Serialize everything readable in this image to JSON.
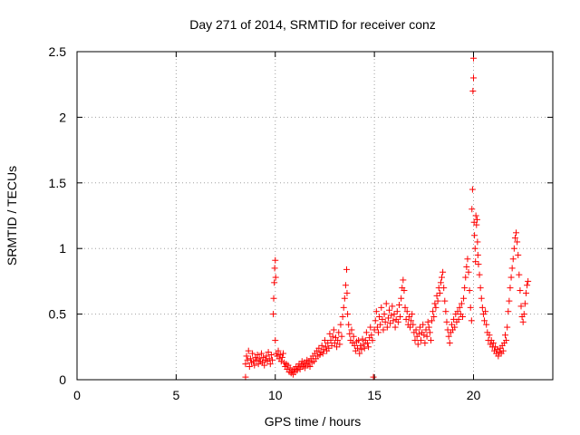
{
  "chart_data": {
    "type": "scatter",
    "title": "Day 271 of 2014, SRMTID for receiver conz",
    "xlabel": "GPS time / hours",
    "ylabel": "SRMTID / TECUs",
    "xlim": [
      0,
      24
    ],
    "ylim": [
      0,
      2.5
    ],
    "xticks": [
      0,
      5,
      10,
      15,
      20
    ],
    "yticks": [
      0,
      0.5,
      1,
      1.5,
      2,
      2.5
    ],
    "xtick_labels": [
      "0",
      "5",
      "10",
      "15",
      "20"
    ],
    "ytick_labels": [
      "0",
      "0.5",
      "1",
      "1.5",
      "2",
      "2.5"
    ],
    "grid": true,
    "marker": "+",
    "color": "#ff0000",
    "series": [
      {
        "name": "SRMTID",
        "points": [
          [
            8.5,
            0.02
          ],
          [
            8.5,
            0.12
          ],
          [
            8.55,
            0.18
          ],
          [
            8.6,
            0.15
          ],
          [
            8.65,
            0.22
          ],
          [
            8.7,
            0.1
          ],
          [
            8.75,
            0.16
          ],
          [
            8.8,
            0.13
          ],
          [
            8.85,
            0.2
          ],
          [
            8.9,
            0.14
          ],
          [
            8.95,
            0.11
          ],
          [
            9.0,
            0.17
          ],
          [
            9.05,
            0.15
          ],
          [
            9.1,
            0.19
          ],
          [
            9.15,
            0.12
          ],
          [
            9.2,
            0.16
          ],
          [
            9.25,
            0.14
          ],
          [
            9.3,
            0.2
          ],
          [
            9.35,
            0.13
          ],
          [
            9.4,
            0.17
          ],
          [
            9.45,
            0.11
          ],
          [
            9.5,
            0.15
          ],
          [
            9.55,
            0.18
          ],
          [
            9.6,
            0.14
          ],
          [
            9.65,
            0.21
          ],
          [
            9.7,
            0.16
          ],
          [
            9.75,
            0.12
          ],
          [
            9.8,
            0.19
          ],
          [
            9.85,
            0.15
          ],
          [
            9.9,
            0.5
          ],
          [
            9.92,
            0.62
          ],
          [
            9.95,
            0.74
          ],
          [
            9.97,
            0.85
          ],
          [
            10.0,
            0.91
          ],
          [
            10.0,
            0.3
          ],
          [
            10.02,
            0.78
          ],
          [
            10.05,
            0.2
          ],
          [
            10.1,
            0.18
          ],
          [
            10.15,
            0.22
          ],
          [
            10.2,
            0.16
          ],
          [
            10.25,
            0.19
          ],
          [
            10.3,
            0.14
          ],
          [
            10.35,
            0.17
          ],
          [
            10.4,
            0.2
          ],
          [
            10.45,
            0.13
          ],
          [
            10.5,
            0.1
          ],
          [
            10.55,
            0.12
          ],
          [
            10.6,
            0.08
          ],
          [
            10.65,
            0.11
          ],
          [
            10.7,
            0.06
          ],
          [
            10.75,
            0.09
          ],
          [
            10.8,
            0.05
          ],
          [
            10.85,
            0.07
          ],
          [
            10.9,
            0.04
          ],
          [
            10.95,
            0.08
          ],
          [
            11.0,
            0.06
          ],
          [
            11.05,
            0.1
          ],
          [
            11.1,
            0.07
          ],
          [
            11.15,
            0.09
          ],
          [
            11.2,
            0.12
          ],
          [
            11.25,
            0.08
          ],
          [
            11.3,
            0.11
          ],
          [
            11.35,
            0.14
          ],
          [
            11.4,
            0.1
          ],
          [
            11.45,
            0.13
          ],
          [
            11.5,
            0.09
          ],
          [
            11.55,
            0.12
          ],
          [
            11.6,
            0.15
          ],
          [
            11.65,
            0.11
          ],
          [
            11.7,
            0.14
          ],
          [
            11.75,
            0.1
          ],
          [
            11.8,
            0.16
          ],
          [
            11.85,
            0.13
          ],
          [
            11.9,
            0.18
          ],
          [
            11.95,
            0.14
          ],
          [
            12.0,
            0.2
          ],
          [
            12.05,
            0.16
          ],
          [
            12.1,
            0.22
          ],
          [
            12.15,
            0.18
          ],
          [
            12.2,
            0.24
          ],
          [
            12.25,
            0.19
          ],
          [
            12.3,
            0.21
          ],
          [
            12.35,
            0.26
          ],
          [
            12.4,
            0.2
          ],
          [
            12.45,
            0.23
          ],
          [
            12.5,
            0.3
          ],
          [
            12.55,
            0.25
          ],
          [
            12.6,
            0.22
          ],
          [
            12.65,
            0.28
          ],
          [
            12.7,
            0.24
          ],
          [
            12.75,
            0.35
          ],
          [
            12.8,
            0.3
          ],
          [
            12.85,
            0.26
          ],
          [
            12.9,
            0.33
          ],
          [
            12.95,
            0.38
          ],
          [
            13.0,
            0.28
          ],
          [
            13.05,
            0.32
          ],
          [
            13.1,
            0.25
          ],
          [
            13.15,
            0.3
          ],
          [
            13.2,
            0.36
          ],
          [
            13.25,
            0.27
          ],
          [
            13.3,
            0.42
          ],
          [
            13.35,
            0.33
          ],
          [
            13.4,
            0.48
          ],
          [
            13.45,
            0.55
          ],
          [
            13.5,
            0.62
          ],
          [
            13.55,
            0.72
          ],
          [
            13.6,
            0.84
          ],
          [
            13.62,
            0.66
          ],
          [
            13.65,
            0.5
          ],
          [
            13.7,
            0.42
          ],
          [
            13.75,
            0.35
          ],
          [
            13.8,
            0.3
          ],
          [
            13.85,
            0.38
          ],
          [
            13.9,
            0.28
          ],
          [
            13.95,
            0.33
          ],
          [
            14.0,
            0.26
          ],
          [
            14.05,
            0.22
          ],
          [
            14.1,
            0.29
          ],
          [
            14.15,
            0.24
          ],
          [
            14.2,
            0.3
          ],
          [
            14.25,
            0.2
          ],
          [
            14.3,
            0.26
          ],
          [
            14.35,
            0.23
          ],
          [
            14.4,
            0.31
          ],
          [
            14.45,
            0.27
          ],
          [
            14.5,
            0.24
          ],
          [
            14.55,
            0.3
          ],
          [
            14.6,
            0.36
          ],
          [
            14.65,
            0.28
          ],
          [
            14.7,
            0.25
          ],
          [
            14.75,
            0.32
          ],
          [
            14.8,
            0.4
          ],
          [
            14.85,
            0.34
          ],
          [
            14.9,
            0.3
          ],
          [
            14.95,
            0.02
          ],
          [
            15.0,
            0.38
          ],
          [
            15.05,
            0.45
          ],
          [
            15.1,
            0.52
          ],
          [
            15.15,
            0.4
          ],
          [
            15.2,
            0.36
          ],
          [
            15.25,
            0.48
          ],
          [
            15.3,
            0.42
          ],
          [
            15.35,
            0.55
          ],
          [
            15.4,
            0.46
          ],
          [
            15.45,
            0.38
          ],
          [
            15.5,
            0.5
          ],
          [
            15.55,
            0.44
          ],
          [
            15.6,
            0.58
          ],
          [
            15.65,
            0.4
          ],
          [
            15.7,
            0.47
          ],
          [
            15.75,
            0.53
          ],
          [
            15.8,
            0.43
          ],
          [
            15.85,
            0.49
          ],
          [
            15.9,
            0.56
          ],
          [
            15.95,
            0.45
          ],
          [
            16.0,
            0.5
          ],
          [
            16.05,
            0.4
          ],
          [
            16.1,
            0.46
          ],
          [
            16.15,
            0.52
          ],
          [
            16.2,
            0.44
          ],
          [
            16.25,
            0.57
          ],
          [
            16.3,
            0.48
          ],
          [
            16.35,
            0.62
          ],
          [
            16.4,
            0.7
          ],
          [
            16.45,
            0.76
          ],
          [
            16.5,
            0.68
          ],
          [
            16.55,
            0.55
          ],
          [
            16.6,
            0.46
          ],
          [
            16.65,
            0.52
          ],
          [
            16.7,
            0.42
          ],
          [
            16.75,
            0.48
          ],
          [
            16.8,
            0.4
          ],
          [
            16.85,
            0.45
          ],
          [
            16.9,
            0.5
          ],
          [
            16.95,
            0.42
          ],
          [
            17.0,
            0.36
          ],
          [
            17.05,
            0.3
          ],
          [
            17.1,
            0.38
          ],
          [
            17.15,
            0.33
          ],
          [
            17.2,
            0.27
          ],
          [
            17.25,
            0.35
          ],
          [
            17.3,
            0.4
          ],
          [
            17.35,
            0.3
          ],
          [
            17.4,
            0.36
          ],
          [
            17.45,
            0.42
          ],
          [
            17.5,
            0.34
          ],
          [
            17.55,
            0.28
          ],
          [
            17.6,
            0.38
          ],
          [
            17.65,
            0.33
          ],
          [
            17.7,
            0.44
          ],
          [
            17.75,
            0.4
          ],
          [
            17.8,
            0.36
          ],
          [
            17.85,
            0.3
          ],
          [
            17.9,
            0.45
          ],
          [
            17.95,
            0.52
          ],
          [
            18.0,
            0.48
          ],
          [
            18.05,
            0.58
          ],
          [
            18.1,
            0.55
          ],
          [
            18.15,
            0.64
          ],
          [
            18.2,
            0.6
          ],
          [
            18.25,
            0.7
          ],
          [
            18.3,
            0.66
          ],
          [
            18.35,
            0.74
          ],
          [
            18.4,
            0.78
          ],
          [
            18.45,
            0.82
          ],
          [
            18.5,
            0.7
          ],
          [
            18.55,
            0.6
          ],
          [
            18.6,
            0.52
          ],
          [
            18.65,
            0.44
          ],
          [
            18.7,
            0.38
          ],
          [
            18.75,
            0.33
          ],
          [
            18.8,
            0.28
          ],
          [
            18.85,
            0.36
          ],
          [
            18.9,
            0.42
          ],
          [
            18.95,
            0.38
          ],
          [
            19.0,
            0.46
          ],
          [
            19.05,
            0.4
          ],
          [
            19.1,
            0.5
          ],
          [
            19.15,
            0.44
          ],
          [
            19.2,
            0.52
          ],
          [
            19.25,
            0.46
          ],
          [
            19.3,
            0.55
          ],
          [
            19.35,
            0.5
          ],
          [
            19.4,
            0.58
          ],
          [
            19.45,
            0.48
          ],
          [
            19.5,
            0.62
          ],
          [
            19.55,
            0.7
          ],
          [
            19.6,
            0.78
          ],
          [
            19.65,
            0.86
          ],
          [
            19.7,
            0.92
          ],
          [
            19.75,
            0.82
          ],
          [
            19.8,
            0.68
          ],
          [
            19.85,
            0.55
          ],
          [
            19.9,
            0.45
          ],
          [
            19.92,
            1.3
          ],
          [
            19.95,
            1.45
          ],
          [
            19.97,
            2.2
          ],
          [
            20.0,
            2.3
          ],
          [
            20.0,
            2.45
          ],
          [
            20.03,
            1.2
          ],
          [
            20.05,
            1.1
          ],
          [
            20.08,
            1.0
          ],
          [
            20.1,
            0.9
          ],
          [
            20.12,
            1.25
          ],
          [
            20.15,
            1.18
          ],
          [
            20.18,
            1.22
          ],
          [
            20.2,
            1.05
          ],
          [
            20.22,
            0.95
          ],
          [
            20.25,
            0.88
          ],
          [
            20.3,
            0.8
          ],
          [
            20.35,
            0.7
          ],
          [
            20.4,
            0.62
          ],
          [
            20.45,
            0.55
          ],
          [
            20.5,
            0.5
          ],
          [
            20.55,
            0.45
          ],
          [
            20.6,
            0.52
          ],
          [
            20.65,
            0.42
          ],
          [
            20.7,
            0.36
          ],
          [
            20.75,
            0.3
          ],
          [
            20.8,
            0.34
          ],
          [
            20.85,
            0.27
          ],
          [
            20.9,
            0.3
          ],
          [
            20.95,
            0.25
          ],
          [
            21.0,
            0.28
          ],
          [
            21.05,
            0.22
          ],
          [
            21.1,
            0.25
          ],
          [
            21.15,
            0.2
          ],
          [
            21.2,
            0.23
          ],
          [
            21.25,
            0.18
          ],
          [
            21.3,
            0.21
          ],
          [
            21.35,
            0.24
          ],
          [
            21.4,
            0.2
          ],
          [
            21.45,
            0.26
          ],
          [
            21.5,
            0.22
          ],
          [
            21.55,
            0.28
          ],
          [
            21.6,
            0.34
          ],
          [
            21.65,
            0.3
          ],
          [
            21.7,
            0.4
          ],
          [
            21.75,
            0.52
          ],
          [
            21.8,
            0.6
          ],
          [
            21.85,
            0.7
          ],
          [
            21.9,
            0.78
          ],
          [
            21.95,
            0.85
          ],
          [
            22.0,
            0.92
          ],
          [
            22.05,
            1.0
          ],
          [
            22.1,
            1.08
          ],
          [
            22.15,
            1.12
          ],
          [
            22.2,
            1.05
          ],
          [
            22.25,
            0.95
          ],
          [
            22.3,
            0.8
          ],
          [
            22.35,
            0.68
          ],
          [
            22.4,
            0.56
          ],
          [
            22.45,
            0.48
          ],
          [
            22.5,
            0.44
          ],
          [
            22.55,
            0.5
          ],
          [
            22.6,
            0.58
          ],
          [
            22.65,
            0.66
          ],
          [
            22.7,
            0.72
          ],
          [
            22.75,
            0.75
          ]
        ]
      }
    ]
  }
}
